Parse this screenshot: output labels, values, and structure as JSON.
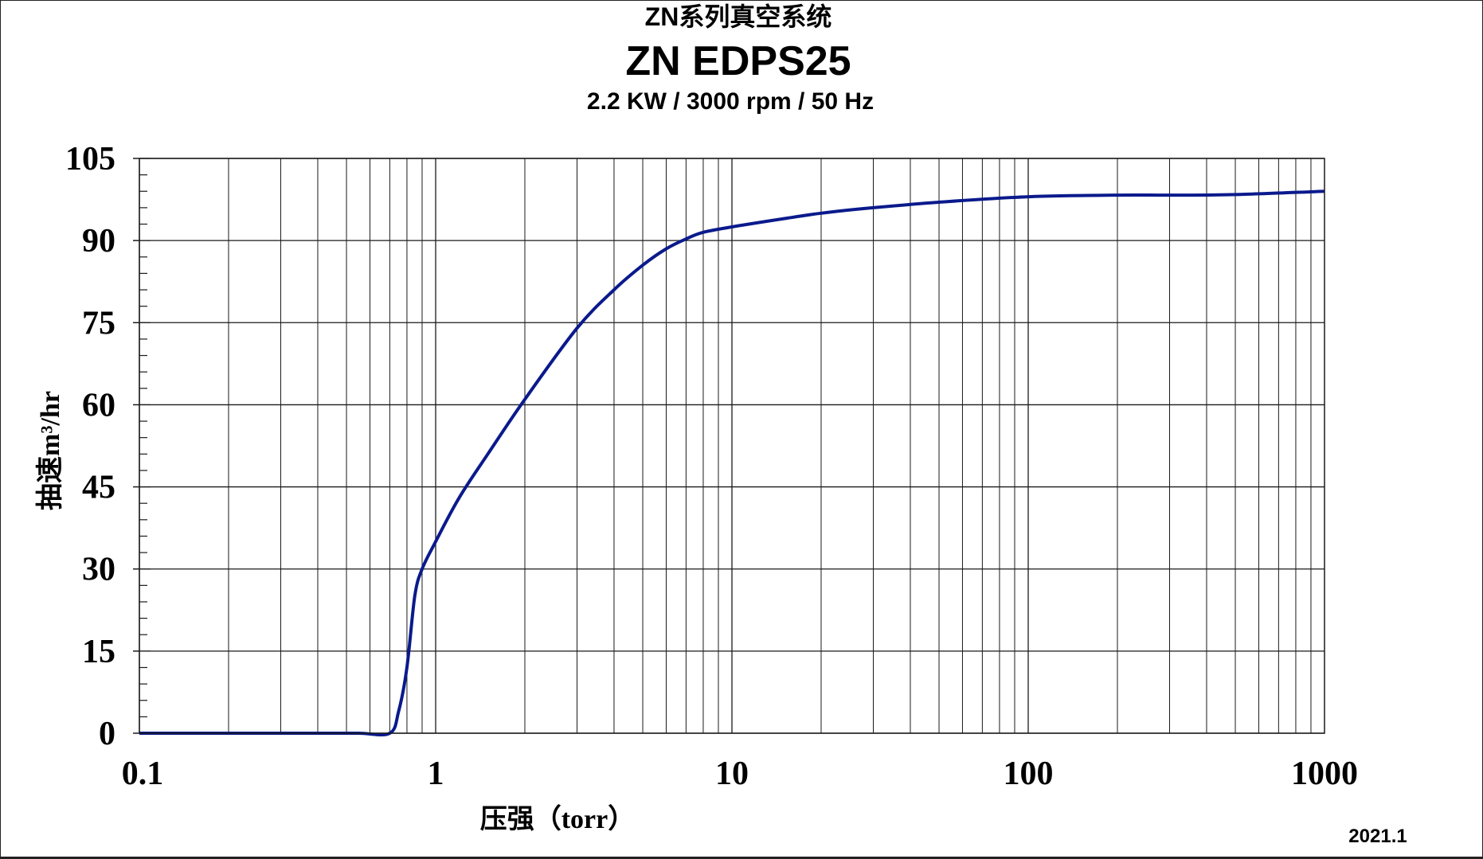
{
  "header": {
    "series": "ZN系列真空系统",
    "model": "ZN EDPS25",
    "spec": "2.2 KW / 3000 rpm / 50 Hz"
  },
  "footer": {
    "date": "2021.1"
  },
  "chart_data": {
    "type": "line",
    "title": "ZN EDPS25",
    "subtitle": "2.2 KW / 3000 rpm / 50 Hz",
    "xlabel": "压强（torr）",
    "ylabel": "抽速m³/hr",
    "xscale": "log",
    "xlim": [
      0.1,
      1000
    ],
    "ylim": [
      0,
      105
    ],
    "xticks": [
      0.1,
      1,
      10,
      100,
      1000
    ],
    "xtick_labels": [
      "0.1",
      "1",
      "10",
      "100",
      "1000"
    ],
    "yticks": [
      0,
      15,
      30,
      45,
      60,
      75,
      90,
      105
    ],
    "ytick_labels": [
      "0",
      "15",
      "30",
      "45",
      "60",
      "75",
      "90",
      "105"
    ],
    "grid": true,
    "line_color": "#0a1a8c",
    "series": [
      {
        "x": [
          0.1,
          0.2,
          0.4,
          0.55,
          0.7,
          0.75,
          0.8,
          0.85,
          0.9,
          1.0,
          1.2,
          1.5,
          2,
          3,
          4,
          5,
          6,
          7,
          8,
          10,
          15,
          20,
          30,
          50,
          100,
          200,
          300,
          500,
          1000
        ],
        "y": [
          0,
          0,
          0,
          0,
          0,
          4,
          12,
          25,
          30,
          35,
          43,
          51,
          61,
          74,
          81,
          85.5,
          88.5,
          90.3,
          91.5,
          92.5,
          94,
          95,
          96,
          97,
          98,
          98.3,
          98.3,
          98.4,
          99
        ]
      }
    ]
  }
}
